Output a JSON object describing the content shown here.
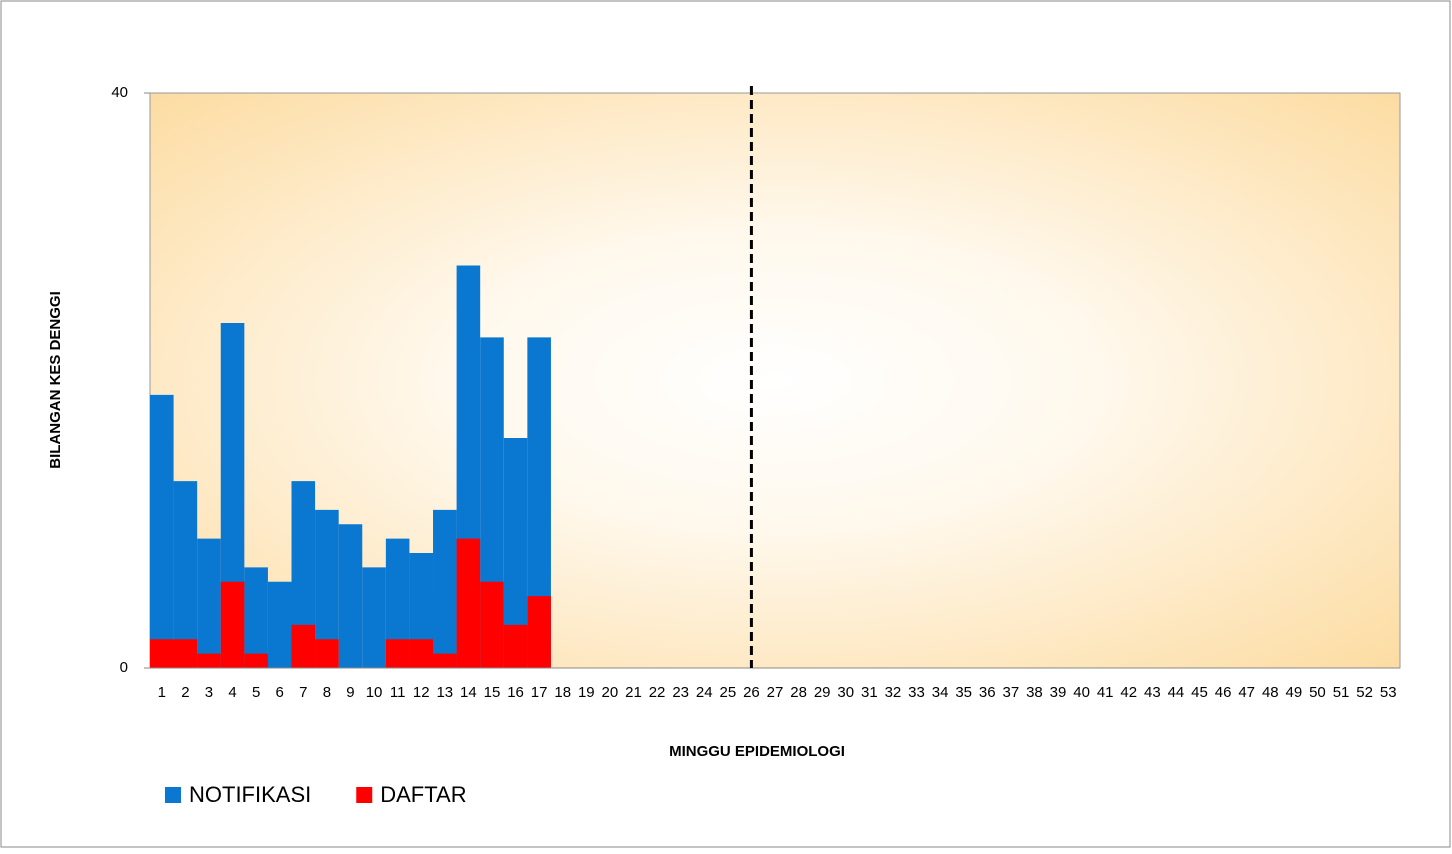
{
  "chart_data": {
    "type": "bar",
    "bar_layout": "overlap",
    "xlabel": "MINGGU EPIDEMIOLOGI",
    "ylabel": "BILANGAN KES DENGGI",
    "categories": [
      "1",
      "2",
      "3",
      "4",
      "5",
      "6",
      "7",
      "8",
      "9",
      "10",
      "11",
      "12",
      "13",
      "14",
      "15",
      "16",
      "17",
      "18",
      "19",
      "20",
      "21",
      "22",
      "23",
      "24",
      "25",
      "26",
      "27",
      "28",
      "29",
      "30",
      "31",
      "32",
      "33",
      "34",
      "35",
      "36",
      "37",
      "38",
      "39",
      "40",
      "41",
      "42",
      "43",
      "44",
      "45",
      "46",
      "47",
      "48",
      "49",
      "50",
      "51",
      "52",
      "53"
    ],
    "series": [
      {
        "name": "NOTIFIKASI",
        "color": "#0a77d1",
        "values": [
          19,
          13,
          9,
          24,
          7,
          6,
          13,
          11,
          10,
          7,
          9,
          8,
          11,
          28,
          23,
          16,
          23,
          null,
          null,
          null,
          null,
          null,
          null,
          null,
          null,
          null,
          null,
          null,
          null,
          null,
          null,
          null,
          null,
          null,
          null,
          null,
          null,
          null,
          null,
          null,
          null,
          null,
          null,
          null,
          null,
          null,
          null,
          null,
          null,
          null,
          null,
          null,
          null
        ]
      },
      {
        "name": "DAFTAR",
        "color": "#ff0000",
        "values": [
          2,
          2,
          1,
          6,
          1,
          0,
          3,
          2,
          0,
          0,
          2,
          2,
          1,
          9,
          6,
          3,
          5,
          null,
          null,
          null,
          null,
          null,
          null,
          null,
          null,
          null,
          null,
          null,
          null,
          null,
          null,
          null,
          null,
          null,
          null,
          null,
          null,
          null,
          null,
          null,
          null,
          null,
          null,
          null,
          null,
          null,
          null,
          null,
          null,
          null,
          null,
          null,
          null
        ]
      }
    ],
    "reference_line_category": "26",
    "ylim": [
      0,
      40
    ],
    "yticks": [
      0,
      40
    ],
    "grid": false,
    "legend": "bottom-left"
  }
}
